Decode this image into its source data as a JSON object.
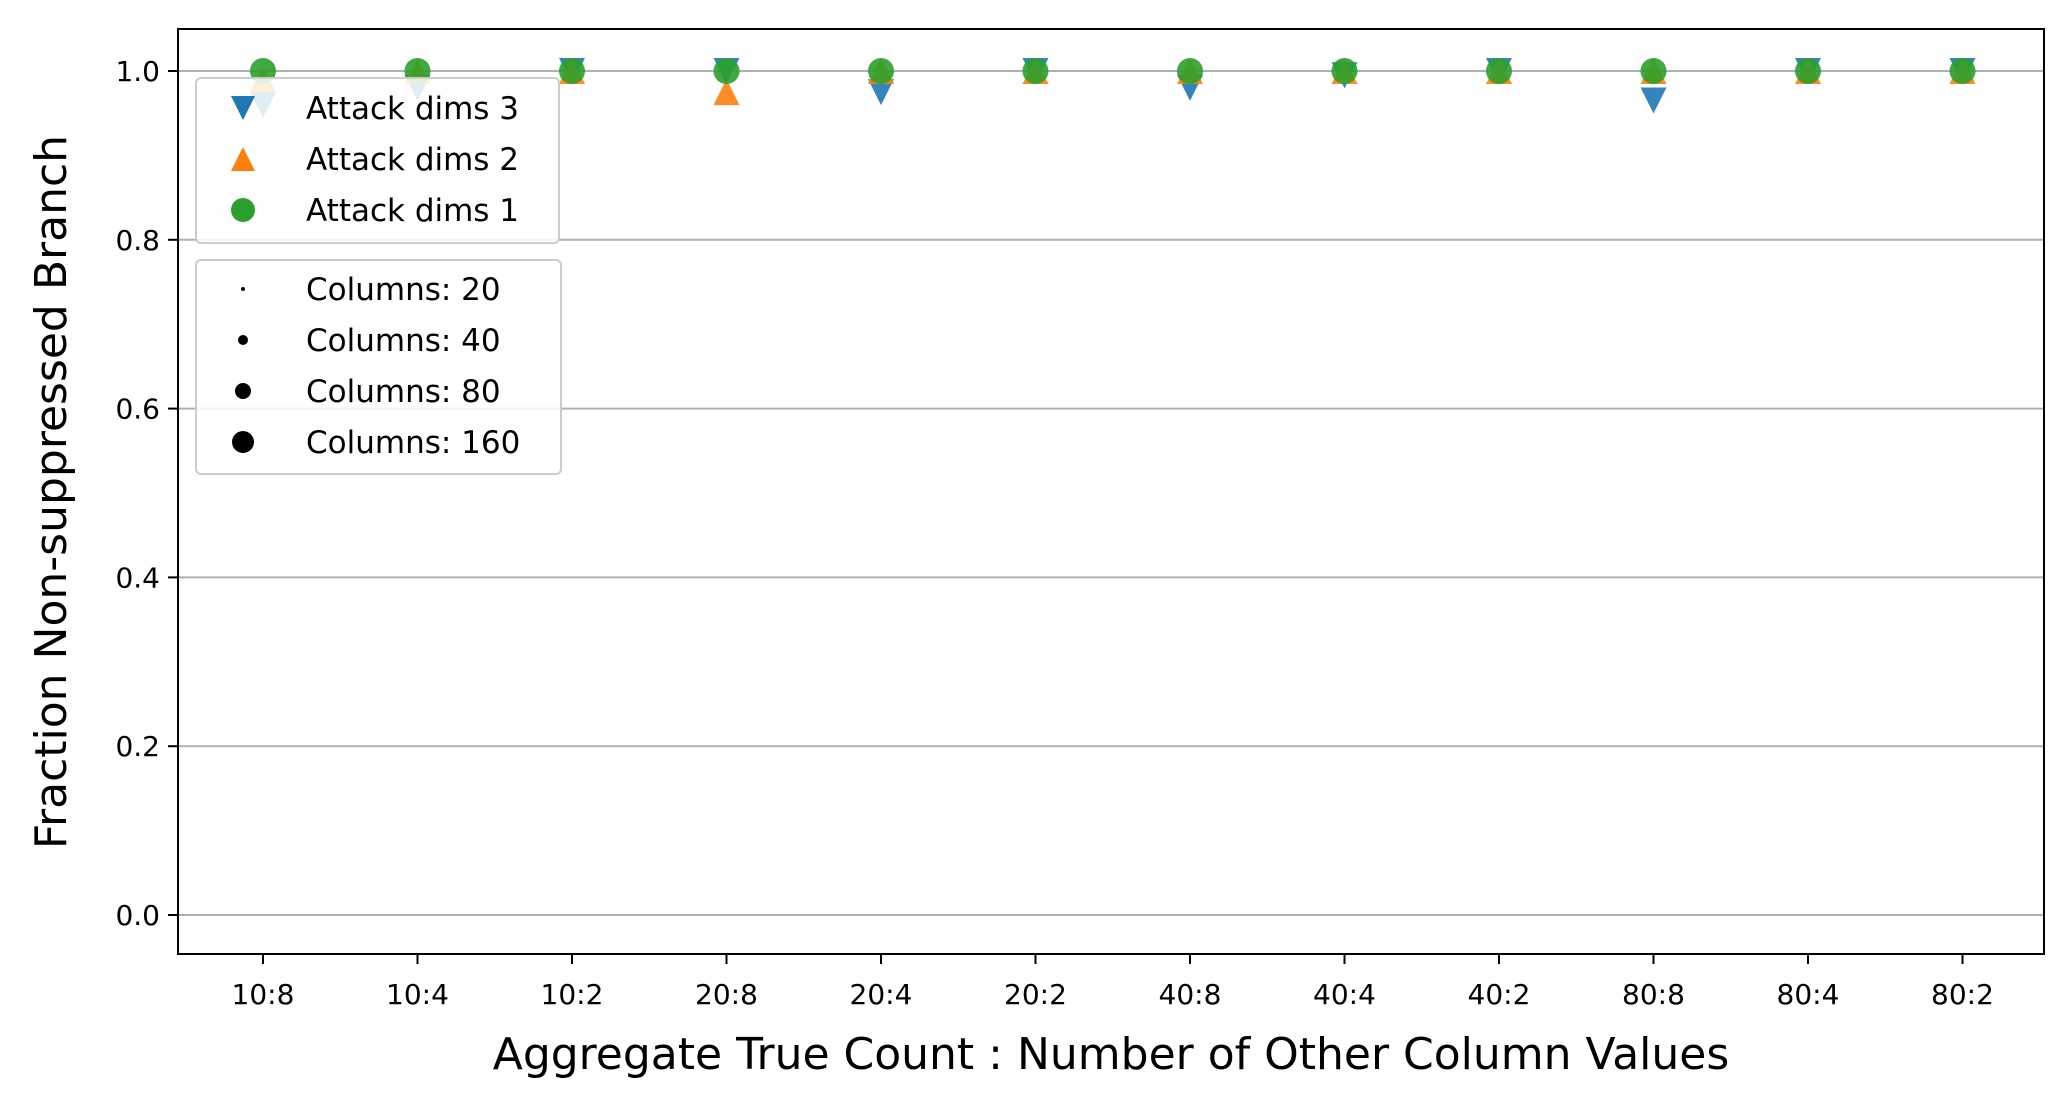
{
  "chart_data": {
    "type": "scatter",
    "title": "",
    "xlabel": "Aggregate True Count : Number of Other Column Values",
    "ylabel": "Fraction Non-suppressed Branch",
    "categories": [
      "10:8",
      "10:4",
      "10:2",
      "20:8",
      "20:4",
      "20:2",
      "40:8",
      "40:4",
      "40:2",
      "80:8",
      "80:4",
      "80:2"
    ],
    "ylim": [
      -0.048,
      1.05
    ],
    "yticks": [
      "0.0",
      "0.2",
      "0.4",
      "0.6",
      "0.8",
      "1.0"
    ],
    "grid": "horizontal",
    "series": [
      {
        "name": "Attack dims 3",
        "marker": "triangle-down",
        "color": "#1f77b4",
        "points": [
          {
            "x": "10:8",
            "y": 0.96
          },
          {
            "x": "10:4",
            "y": 0.98
          },
          {
            "x": "10:2",
            "y": 1.0
          },
          {
            "x": "20:8",
            "y": 1.0
          },
          {
            "x": "20:4",
            "y": 0.975
          },
          {
            "x": "20:2",
            "y": 1.0
          },
          {
            "x": "40:8",
            "y": 0.98
          },
          {
            "x": "40:4",
            "y": 0.995
          },
          {
            "x": "40:2",
            "y": 1.0
          },
          {
            "x": "80:8",
            "y": 0.965
          },
          {
            "x": "80:4",
            "y": 1.0
          },
          {
            "x": "80:2",
            "y": 1.0
          }
        ]
      },
      {
        "name": "Attack dims 2",
        "marker": "triangle-up",
        "color": "#ff7f0e",
        "points": [
          {
            "x": "10:8",
            "y": 0.99
          },
          {
            "x": "10:4",
            "y": 1.0
          },
          {
            "x": "10:2",
            "y": 1.0
          },
          {
            "x": "20:8",
            "y": 0.975
          },
          {
            "x": "20:4",
            "y": 1.0
          },
          {
            "x": "20:2",
            "y": 1.0
          },
          {
            "x": "40:8",
            "y": 1.0
          },
          {
            "x": "40:4",
            "y": 1.0
          },
          {
            "x": "40:2",
            "y": 1.0
          },
          {
            "x": "80:8",
            "y": 1.0
          },
          {
            "x": "80:4",
            "y": 1.0
          },
          {
            "x": "80:2",
            "y": 1.0
          }
        ]
      },
      {
        "name": "Attack dims 1",
        "marker": "circle",
        "color": "#2ca02c",
        "points": [
          {
            "x": "10:8",
            "y": 1.0
          },
          {
            "x": "10:4",
            "y": 1.0
          },
          {
            "x": "10:2",
            "y": 1.0
          },
          {
            "x": "20:8",
            "y": 1.0
          },
          {
            "x": "20:4",
            "y": 1.0
          },
          {
            "x": "20:2",
            "y": 1.0
          },
          {
            "x": "40:8",
            "y": 1.0
          },
          {
            "x": "40:4",
            "y": 1.0
          },
          {
            "x": "40:2",
            "y": 1.0
          },
          {
            "x": "80:8",
            "y": 1.0
          },
          {
            "x": "80:4",
            "y": 1.0
          },
          {
            "x": "80:2",
            "y": 1.0
          }
        ]
      }
    ],
    "legend_series": {
      "placement": "top-left",
      "entries": [
        {
          "label": "Attack dims 3",
          "marker": "triangle-down",
          "color": "#1f77b4"
        },
        {
          "label": "Attack dims 2",
          "marker": "triangle-up",
          "color": "#ff7f0e"
        },
        {
          "label": "Attack dims 1",
          "marker": "circle",
          "color": "#2ca02c"
        }
      ]
    },
    "legend_sizes": {
      "placement": "upper-left",
      "entries": [
        {
          "label": "Columns: 20",
          "columns": 20
        },
        {
          "label": "Columns: 40",
          "columns": 40
        },
        {
          "label": "Columns: 80",
          "columns": 80
        },
        {
          "label": "Columns: 160",
          "columns": 160
        }
      ]
    }
  }
}
